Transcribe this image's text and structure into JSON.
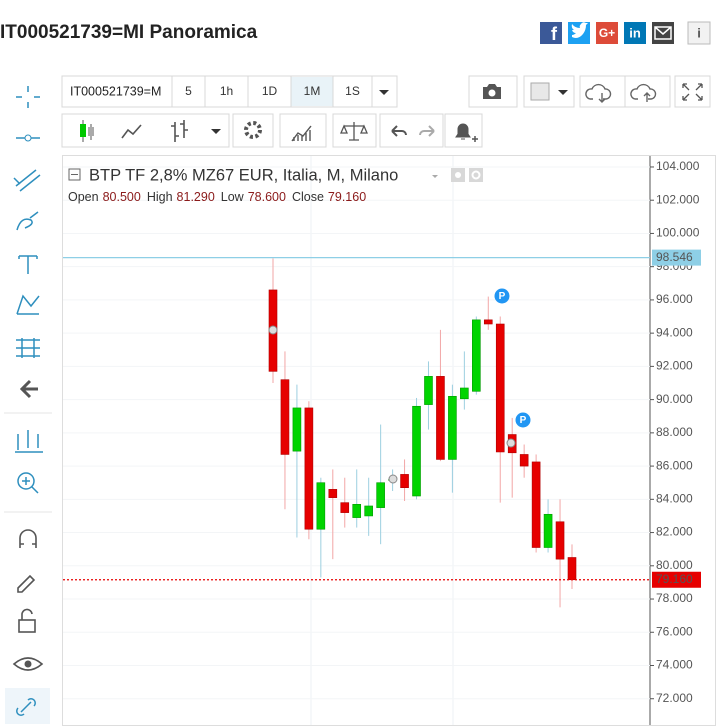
{
  "header": {
    "title": "IT000521739=MI Panoramica",
    "social": [
      "G+",
      "in"
    ]
  },
  "toolbar": {
    "symbol": "IT000521739=M",
    "intervals": [
      "5",
      "1h",
      "1D",
      "1M",
      "1S"
    ]
  },
  "chart_data": {
    "type": "candlestick",
    "title": "BTP TF 2,8% MZ67 EUR, Italia, M, Milano",
    "legend_ohlc": [
      {
        "name": "Open",
        "label": "80.500"
      },
      {
        "name": "High",
        "label": "81.290"
      },
      {
        "name": "Low",
        "label": "78.600"
      },
      {
        "name": "Close",
        "label": "79.160"
      }
    ],
    "categories": [
      null,
      null,
      null,
      null,
      null,
      null,
      null,
      null,
      null,
      null,
      null,
      null,
      null,
      null,
      null,
      null,
      null,
      null,
      null,
      null,
      null,
      null,
      null,
      null,
      null,
      null
    ],
    "open": [
      96.6,
      91.2,
      86.9,
      89.5,
      82.2,
      84.6,
      83.8,
      82.9,
      83.0,
      83.5,
      85.2,
      85.5,
      84.2,
      89.7,
      91.4,
      86.4,
      90.05,
      90.5,
      94.8,
      94.55,
      87.9,
      86.7,
      86.25,
      81.1,
      82.65,
      80.5
    ],
    "high": [
      98.5,
      92.9,
      90.9,
      89.9,
      85.3,
      85.8,
      85.3,
      85.8,
      85.3,
      88.5,
      85.8,
      86.4,
      90.1,
      92.3,
      94.2,
      90.9,
      92.9,
      95.0,
      96.2,
      95.0,
      88.9,
      87.3,
      86.7,
      84.0,
      84.0,
      81.29
    ],
    "low": [
      91.0,
      83.4,
      81.7,
      81.6,
      79.3,
      80.4,
      82.3,
      82.3,
      81.8,
      81.3,
      84.5,
      83.9,
      84.0,
      88.2,
      86.3,
      84.4,
      89.4,
      90.3,
      94.2,
      83.8,
      84.1,
      85.3,
      80.8,
      80.8,
      77.5,
      78.6
    ],
    "close": [
      91.7,
      86.7,
      89.5,
      82.2,
      85.0,
      84.1,
      83.2,
      83.7,
      83.6,
      85.0,
      85.2,
      84.7,
      89.6,
      91.4,
      86.4,
      90.2,
      90.7,
      94.8,
      94.55,
      86.85,
      86.8,
      86.0,
      81.1,
      83.1,
      80.4,
      79.16
    ],
    "up_color": "#00d400",
    "down_color": "#e60000",
    "ylim": [
      70.6,
      104.6
    ],
    "yticks": [
      {
        "value": 72,
        "label": "72.000"
      },
      {
        "value": 74,
        "label": "74.000"
      },
      {
        "value": 76,
        "label": "76.000"
      },
      {
        "value": 78,
        "label": "78.000"
      },
      {
        "value": 80,
        "label": "80.000"
      },
      {
        "value": 82,
        "label": "82.000"
      },
      {
        "value": 84,
        "label": "84.000"
      },
      {
        "value": 86,
        "label": "86.000"
      },
      {
        "value": 88,
        "label": "88.000"
      },
      {
        "value": 90,
        "label": "90.000"
      },
      {
        "value": 92,
        "label": "92.000"
      },
      {
        "value": 94,
        "label": "94.000"
      },
      {
        "value": 96,
        "label": "96.000"
      },
      {
        "value": 98,
        "label": "98.000"
      },
      {
        "value": 100,
        "label": "100.000"
      },
      {
        "value": 102,
        "label": "102.000"
      },
      {
        "value": 104,
        "label": "104.000"
      }
    ],
    "grid": true,
    "price_lines": [
      {
        "value": 98.546,
        "label": "98.546",
        "color": "#8ecfe6"
      },
      {
        "value": 79.16,
        "label": "79.160",
        "color": "#e60000"
      }
    ],
    "annotations": [
      {
        "text": "P"
      },
      {
        "text": "P"
      }
    ]
  }
}
